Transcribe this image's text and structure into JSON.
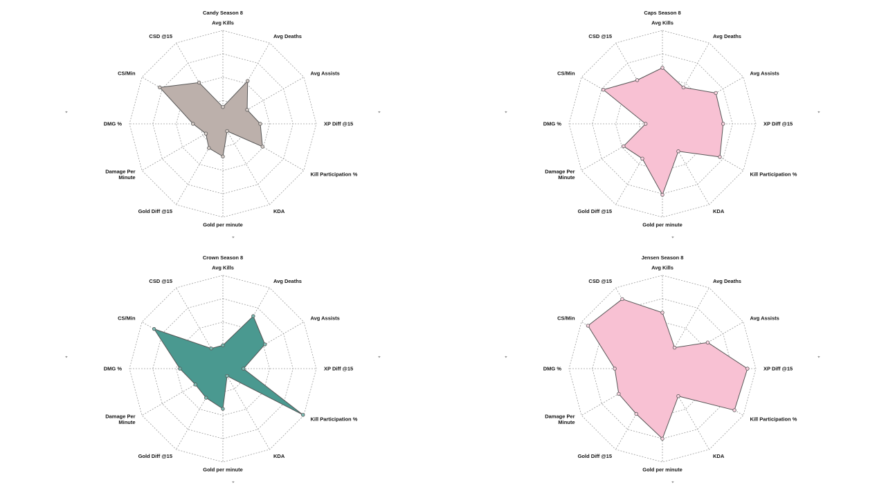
{
  "chart_data": [
    {
      "type": "radar",
      "title": "Candy Season 8",
      "color": "#bcb0ab",
      "point_color": "#d8cfca",
      "axes": [
        "Avg Kills",
        "Avg Deaths",
        "Avg Assists",
        "XP Diff @15",
        "Kill Participation %",
        "KDA",
        "Gold per minute",
        "Gold Diff @15",
        "Damage Per Minute",
        "DMG %",
        "CS/Min",
        "CSD @15"
      ],
      "axis_label_lines": [
        [
          "Avg Kills"
        ],
        [
          "Avg Deaths"
        ],
        [
          "Avg Assists"
        ],
        [
          "XP Diff @15"
        ],
        [
          "Kill Participation %"
        ],
        [
          "KDA"
        ],
        [
          "Gold per minute"
        ],
        [
          "Gold Diff @15"
        ],
        [
          "Damage Per",
          "Minute"
        ],
        [
          "DMG %"
        ],
        [
          "CS/Min"
        ],
        [
          "CSD @15"
        ]
      ],
      "values": [
        0.18,
        0.53,
        0.3,
        0.4,
        0.49,
        0.09,
        0.35,
        0.3,
        0.21,
        0.32,
        0.78,
        0.51
      ],
      "range": [
        0,
        1
      ],
      "rings": 4,
      "grid": true
    },
    {
      "type": "radar",
      "title": "Caps Season 8",
      "color": "#f8c1d3",
      "point_color": "#fbd5e2",
      "axes": [
        "Avg Kills",
        "Avg Deaths",
        "Avg Assists",
        "XP Diff @15",
        "Kill Participation %",
        "KDA",
        "Gold per minute",
        "Gold Diff @15",
        "Damage Per Minute",
        "DMG %",
        "CS/Min",
        "CSD @15"
      ],
      "axis_label_lines": [
        [
          "Avg Kills"
        ],
        [
          "Avg Deaths"
        ],
        [
          "Avg Assists"
        ],
        [
          "XP Diff @15"
        ],
        [
          "Kill Participation %"
        ],
        [
          "KDA"
        ],
        [
          "Gold per minute"
        ],
        [
          "Gold Diff @15"
        ],
        [
          "Damage Per",
          "Minute"
        ],
        [
          "DMG %"
        ],
        [
          "CS/Min"
        ],
        [
          "CSD @15"
        ]
      ],
      "values": [
        0.6,
        0.45,
        0.66,
        0.65,
        0.71,
        0.34,
        0.76,
        0.43,
        0.48,
        0.18,
        0.73,
        0.54
      ],
      "range": [
        0,
        1
      ],
      "rings": 4,
      "grid": true
    },
    {
      "type": "radar",
      "title": "Crown Season 8",
      "color": "#4a9990",
      "point_color": "#7dbbb3",
      "axes": [
        "Avg Kills",
        "Avg Deaths",
        "Avg Assists",
        "XP Diff @15",
        "Kill Participation %",
        "KDA",
        "Gold per minute",
        "Gold Diff @15",
        "Damage Per Minute",
        "DMG %",
        "CS/Min",
        "CSD @15"
      ],
      "axis_label_lines": [
        [
          "Avg Kills"
        ],
        [
          "Avg Deaths"
        ],
        [
          "Avg Assists"
        ],
        [
          "XP Diff @15"
        ],
        [
          "Kill Participation %"
        ],
        [
          "KDA"
        ],
        [
          "Gold per minute"
        ],
        [
          "Gold Diff @15"
        ],
        [
          "Damage Per",
          "Minute"
        ],
        [
          "DMG %"
        ],
        [
          "CS/Min"
        ],
        [
          "CSD @15"
        ]
      ],
      "values": [
        0.25,
        0.65,
        0.52,
        0.22,
        0.99,
        0.09,
        0.43,
        0.36,
        0.34,
        0.46,
        0.85,
        0.25
      ],
      "range": [
        0,
        1
      ],
      "rings": 4,
      "grid": true
    },
    {
      "type": "radar",
      "title": "Jensen Season 8",
      "color": "#f8c1d3",
      "point_color": "#fbd5e2",
      "axes": [
        "Avg Kills",
        "Avg Deaths",
        "Avg Assists",
        "XP Diff @15",
        "Kill Participation %",
        "KDA",
        "Gold per minute",
        "Gold Diff @15",
        "Damage Per Minute",
        "DMG %",
        "CS/Min",
        "CSD @15"
      ],
      "axis_label_lines": [
        [
          "Avg Kills"
        ],
        [
          "Avg Deaths"
        ],
        [
          "Avg Assists"
        ],
        [
          "XP Diff @15"
        ],
        [
          "Kill Participation %"
        ],
        [
          "KDA"
        ],
        [
          "Gold per minute"
        ],
        [
          "Gold Diff @15"
        ],
        [
          "Damage Per",
          "Minute"
        ],
        [
          "DMG %"
        ],
        [
          "CS/Min"
        ],
        [
          "CSD @15"
        ]
      ],
      "values": [
        0.6,
        0.26,
        0.56,
        0.91,
        0.89,
        0.34,
        0.75,
        0.56,
        0.54,
        0.51,
        0.92,
        0.86
      ],
      "range": [
        0,
        1
      ],
      "rings": 4,
      "grid": true
    }
  ],
  "pin_icon": "pin-icon"
}
